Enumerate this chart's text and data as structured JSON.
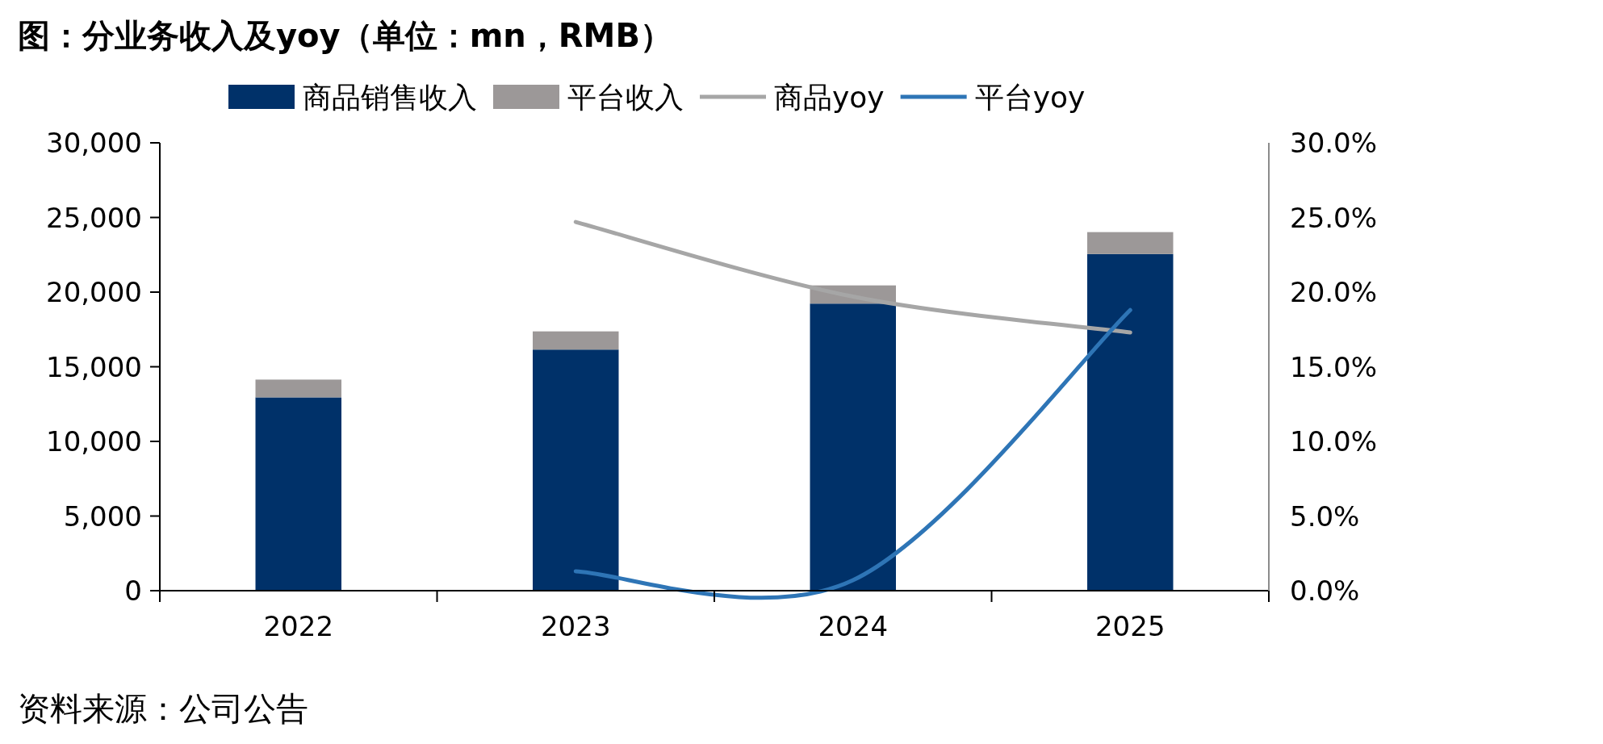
{
  "chart_data": {
    "type": "bar",
    "title": "图：分业务收入及yoy（单位：mn，RMB）",
    "categories": [
      "2022",
      "2023",
      "2024",
      "2025"
    ],
    "stacked": true,
    "series": [
      {
        "name": "商品销售收入",
        "color": "#003169",
        "values": [
          12950,
          16150,
          19230,
          22550
        ]
      },
      {
        "name": "平台收入",
        "color": "#9c9898",
        "values": [
          1190,
          1220,
          1220,
          1470
        ]
      },
      {
        "name": "商品yoy",
        "type": "line",
        "axis": "y2",
        "color": "#a6a6a6",
        "values": [
          null,
          24.7,
          19.7,
          17.3
        ]
      },
      {
        "name": "平台yoy",
        "type": "line",
        "axis": "y2",
        "color": "#2e75b6",
        "values": [
          null,
          1.3,
          0.7,
          18.8
        ]
      }
    ],
    "ylim": [
      0,
      30000
    ],
    "yticks": [
      {
        "value": 0,
        "label": "0"
      },
      {
        "value": 5000,
        "label": "5,000"
      },
      {
        "value": 10000,
        "label": "10,000"
      },
      {
        "value": 15000,
        "label": "15,000"
      },
      {
        "value": 20000,
        "label": "20,000"
      },
      {
        "value": 25000,
        "label": "25,000"
      },
      {
        "value": 30000,
        "label": "30,000"
      }
    ],
    "y2lim": [
      0,
      30
    ],
    "y2ticks": [
      {
        "value": 0,
        "label": "0.0%"
      },
      {
        "value": 5,
        "label": "5.0%"
      },
      {
        "value": 10,
        "label": "10.0%"
      },
      {
        "value": 15,
        "label": "15.0%"
      },
      {
        "value": 20,
        "label": "20.0%"
      },
      {
        "value": 25,
        "label": "25.0%"
      },
      {
        "value": 30,
        "label": "30.0%"
      }
    ],
    "grid": false,
    "legend": "top",
    "annotations": [
      "资料来源：公司公告"
    ]
  }
}
